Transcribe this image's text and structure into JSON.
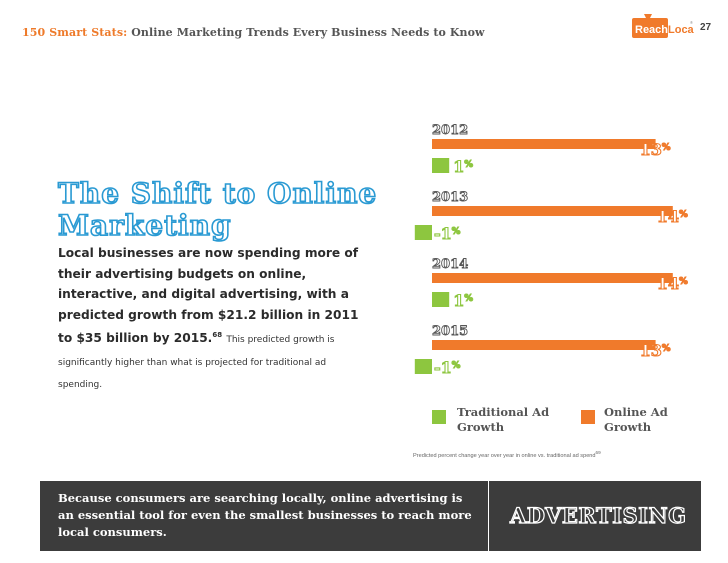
{
  "header": {
    "title_accent": "150 Smart Stats:",
    "title_main": "Online Marketing Trends Every Business Needs to Know",
    "logo_text_left": "Reach",
    "logo_text_right": "Local",
    "logo_tm": "®",
    "page_number": "27"
  },
  "left": {
    "headline_line1": "The Shift to Online",
    "headline_line2": "Marketing",
    "body_lead": "Local businesses are now spending more of their advertising budgets on online, interactive, and digital advertising, with a predicted growth from $21.2 billion in 2011 to $35 billion by 2015.",
    "footnote": "68",
    "body_small": "This predicted growth is significantly higher than what is projected for traditional ad spending."
  },
  "chart_data": {
    "type": "bar",
    "orientation": "horizontal",
    "categories": [
      "2012",
      "2013",
      "2014",
      "2015"
    ],
    "series": [
      {
        "name": "Online Ad Growth",
        "color": "#f07a2b",
        "values": [
          13,
          14,
          14,
          13
        ]
      },
      {
        "name": "Traditional Ad Growth",
        "color": "#8dc63f",
        "values": [
          1,
          -1,
          1,
          -1
        ]
      }
    ],
    "value_suffix": "%",
    "xlim": [
      -1,
      14
    ],
    "caption": "Predicted percent change year over year in online vs. traditional ad spend",
    "caption_footnote": "69"
  },
  "legend": {
    "traditional_line1": "Traditional Ad",
    "traditional_line2": "Growth",
    "online_line1": "Online Ad",
    "online_line2": "Growth"
  },
  "footer": {
    "text": "Because consumers are searching locally, online advertising is an essential tool for even the smallest businesses to reach more local consumers.",
    "category": "ADVERTISING"
  },
  "colors": {
    "orange": "#f07a2b",
    "green": "#8dc63f",
    "blue": "#2a9ad3",
    "dark": "#3c3c3c"
  }
}
